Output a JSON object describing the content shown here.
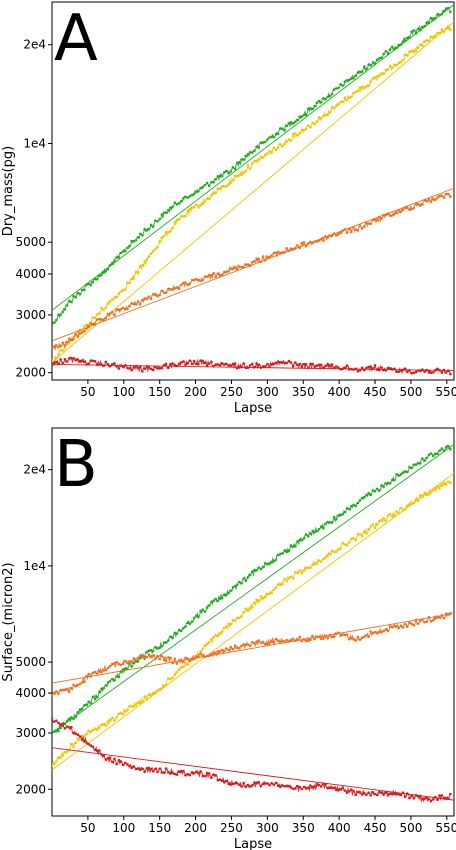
{
  "chart_data": [
    {
      "type": "line",
      "panel_label": "A",
      "xlabel": "Lapse",
      "ylabel": "Dry_mass(pg)",
      "yscale": "log",
      "xlim": [
        0,
        560
      ],
      "ylim": [
        1900,
        27000
      ],
      "x_ticks": [
        50,
        100,
        150,
        200,
        250,
        300,
        350,
        400,
        450,
        500,
        550
      ],
      "y_ticks": [
        {
          "value": 2000,
          "label": "2000"
        },
        {
          "value": 3000,
          "label": "3000"
        },
        {
          "value": 4000,
          "label": "4000"
        },
        {
          "value": 5000,
          "label": "5000"
        },
        {
          "value": 10000,
          "label": "1e4"
        },
        {
          "value": 20000,
          "label": "2e4"
        }
      ],
      "grid": false,
      "series": [
        {
          "color": "#1fad1f",
          "x": [
            0,
            25,
            50,
            75,
            100,
            125,
            150,
            175,
            200,
            225,
            250,
            275,
            300,
            325,
            350,
            375,
            400,
            425,
            450,
            475,
            500,
            525,
            550
          ],
          "y": [
            2800,
            3300,
            3700,
            4100,
            4700,
            5300,
            5900,
            6600,
            7100,
            7700,
            8300,
            9300,
            10300,
            11200,
            12200,
            13500,
            14800,
            16300,
            17800,
            19500,
            21500,
            23500,
            25500
          ],
          "fit": [
            3100,
            26500
          ]
        },
        {
          "color": "#f5c400",
          "x": [
            0,
            25,
            50,
            75,
            100,
            125,
            150,
            175,
            200,
            225,
            250,
            275,
            300,
            325,
            350,
            375,
            400,
            425,
            450,
            475,
            500,
            525,
            550
          ],
          "y": [
            2150,
            2500,
            2800,
            3200,
            3600,
            4200,
            5000,
            5800,
            6400,
            7000,
            7700,
            8500,
            9300,
            10100,
            11000,
            12000,
            13200,
            14400,
            15700,
            17200,
            18900,
            20700,
            22500
          ],
          "fit": [
            2150,
            23500
          ]
        },
        {
          "color": "#f07020",
          "x": [
            0,
            25,
            50,
            75,
            100,
            125,
            150,
            175,
            200,
            225,
            250,
            275,
            300,
            325,
            350,
            375,
            400,
            425,
            450,
            475,
            500,
            525,
            550
          ],
          "y": [
            2350,
            2500,
            2750,
            2950,
            3150,
            3300,
            3500,
            3650,
            3800,
            3950,
            4150,
            4300,
            4500,
            4700,
            4900,
            5100,
            5350,
            5500,
            5800,
            6100,
            6400,
            6700,
            7000
          ],
          "fit": [
            2500,
            7300
          ]
        },
        {
          "color": "#dd1a1a",
          "x": [
            0,
            25,
            50,
            75,
            100,
            125,
            150,
            175,
            200,
            225,
            250,
            275,
            300,
            325,
            350,
            375,
            400,
            425,
            450,
            475,
            500,
            525,
            550
          ],
          "y": [
            2130,
            2200,
            2150,
            2120,
            2080,
            2050,
            2080,
            2120,
            2150,
            2120,
            2100,
            2100,
            2110,
            2150,
            2100,
            2090,
            2080,
            2050,
            2070,
            2040,
            2020,
            2030,
            2010
          ],
          "fit": [
            2120,
            2030
          ]
        }
      ]
    },
    {
      "type": "line",
      "panel_label": "B",
      "xlabel": "Lapse",
      "ylabel": "Surface_(micron2)",
      "yscale": "log",
      "xlim": [
        0,
        560
      ],
      "ylim": [
        1650,
        27000
      ],
      "x_ticks": [
        50,
        100,
        150,
        200,
        250,
        300,
        350,
        400,
        450,
        500,
        550
      ],
      "y_ticks": [
        {
          "value": 2000,
          "label": "2000"
        },
        {
          "value": 3000,
          "label": "3000"
        },
        {
          "value": 4000,
          "label": "4000"
        },
        {
          "value": 5000,
          "label": "5000"
        },
        {
          "value": 10000,
          "label": "1e4"
        },
        {
          "value": 20000,
          "label": "2e4"
        }
      ],
      "grid": false,
      "series": [
        {
          "color": "#1fad1f",
          "x": [
            0,
            25,
            50,
            75,
            100,
            125,
            150,
            175,
            200,
            225,
            250,
            275,
            300,
            325,
            350,
            375,
            400,
            425,
            450,
            475,
            500,
            525,
            550
          ],
          "y": [
            3000,
            3300,
            3700,
            4200,
            4700,
            5200,
            5600,
            6200,
            6900,
            7700,
            8400,
            9300,
            10200,
            11100,
            12200,
            13200,
            14300,
            15700,
            17100,
            18700,
            20300,
            22000,
            23500
          ],
          "fit": [
            3000,
            24000
          ]
        },
        {
          "color": "#f5c400",
          "x": [
            0,
            25,
            50,
            75,
            100,
            125,
            150,
            175,
            200,
            225,
            250,
            275,
            300,
            325,
            350,
            375,
            400,
            425,
            450,
            475,
            500,
            525,
            550
          ],
          "y": [
            2400,
            2700,
            3000,
            3200,
            3500,
            3800,
            4100,
            4700,
            5200,
            5900,
            6600,
            7400,
            8200,
            9000,
            9700,
            10500,
            11400,
            12300,
            13400,
            14500,
            15700,
            17000,
            18300
          ],
          "fit": [
            2300,
            19500
          ]
        },
        {
          "color": "#f07020",
          "x": [
            0,
            25,
            50,
            75,
            100,
            125,
            150,
            175,
            200,
            225,
            250,
            275,
            300,
            325,
            350,
            375,
            400,
            425,
            450,
            475,
            500,
            525,
            550
          ],
          "y": [
            4000,
            4100,
            4500,
            4800,
            5000,
            5200,
            5200,
            5000,
            5200,
            5300,
            5500,
            5700,
            5800,
            5900,
            5900,
            6000,
            6100,
            5900,
            6200,
            6400,
            6600,
            6800,
            7000
          ],
          "fit": [
            4300,
            7100
          ]
        },
        {
          "color": "#dd1a1a",
          "x": [
            0,
            25,
            50,
            75,
            100,
            125,
            150,
            175,
            200,
            225,
            250,
            275,
            300,
            325,
            350,
            375,
            400,
            425,
            450,
            475,
            500,
            525,
            550
          ],
          "y": [
            3300,
            3100,
            2800,
            2500,
            2400,
            2300,
            2300,
            2250,
            2250,
            2200,
            2100,
            2050,
            2100,
            2050,
            2000,
            2050,
            2000,
            1950,
            1950,
            1950,
            1900,
            1850,
            1900
          ],
          "fit": [
            2700,
            1850
          ]
        }
      ]
    }
  ]
}
